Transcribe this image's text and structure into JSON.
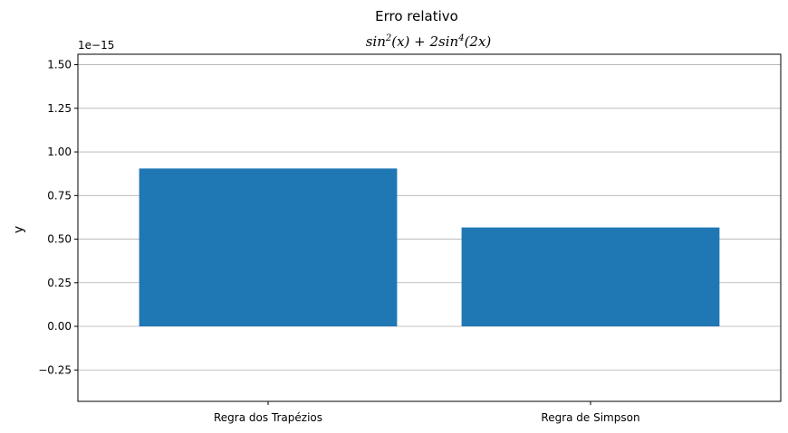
{
  "chart_data": {
    "type": "bar",
    "title": "Erro relativo",
    "subtitle_parts": [
      "sin",
      "2",
      "(x) + 2sin",
      "4",
      "(2x)"
    ],
    "xlabel": "",
    "ylabel": "y",
    "y_offset_label": "1e−15",
    "categories": [
      "Regra dos Trapézios",
      "Regra de Simpson"
    ],
    "values": [
      0.905,
      0.567
    ],
    "ylim": [
      -0.43,
      1.56
    ],
    "yticks": [
      -0.25,
      0.0,
      0.25,
      0.5,
      0.75,
      1.0,
      1.25,
      1.5
    ],
    "ytick_labels": [
      "−0.25",
      "0.00",
      "0.25",
      "0.50",
      "0.75",
      "1.00",
      "1.25",
      "1.50"
    ],
    "bar_color": "#1f77b4",
    "grid": "y"
  }
}
